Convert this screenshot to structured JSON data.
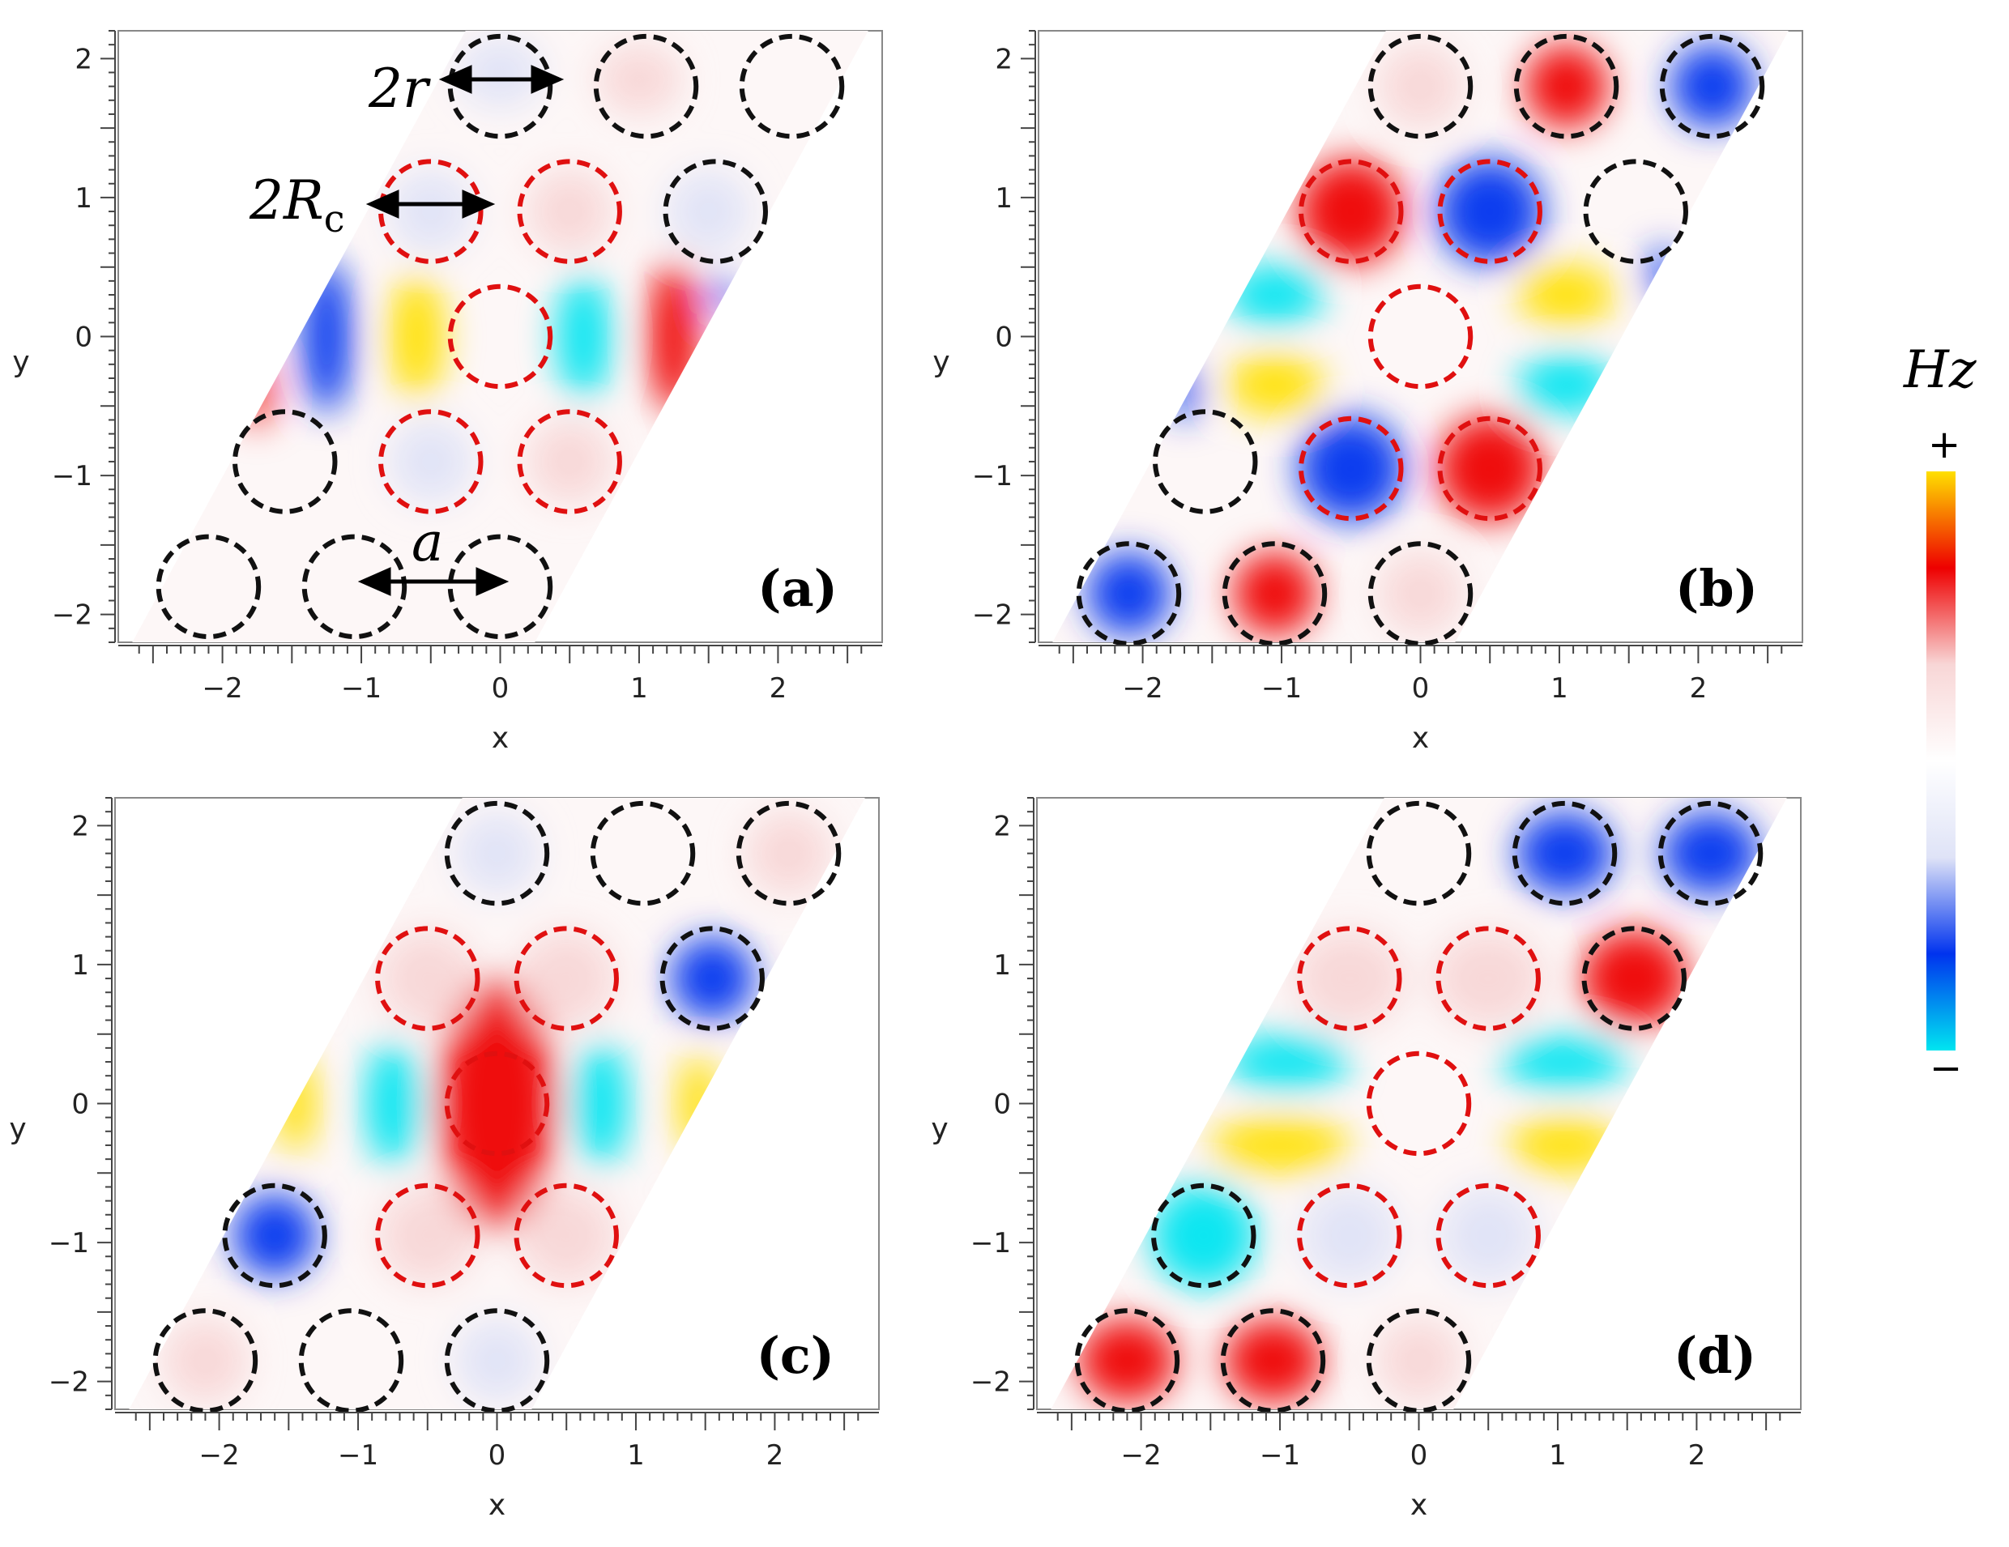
{
  "figure": {
    "colorbar": {
      "title": "Hz",
      "max_label": "+",
      "min_label": "−",
      "colors": [
        "#00e5f0",
        "#0033ee",
        "#dfe3f7",
        "#ffffff",
        "#f8d6d6",
        "#ee0000",
        "#ffe000"
      ]
    },
    "annotations": {
      "two_r": "2r",
      "two_Rc_main": "2R",
      "two_Rc_sub": "c",
      "a": "a"
    }
  },
  "chart_data": [
    {
      "type": "heatmap",
      "panel_label": "(a)",
      "xlabel": "x",
      "ylabel": "y",
      "xlim": [
        -2.75,
        2.75
      ],
      "ylim": [
        -2.2,
        2.2
      ],
      "xticks": [
        -2,
        -1,
        0,
        1,
        2
      ],
      "xtick_labels": [
        "−2",
        "−1",
        "0",
        "1",
        "2"
      ],
      "yticks": [
        -2,
        -1,
        0,
        1,
        2
      ],
      "ytick_labels": [
        "−2",
        "−1",
        "0",
        "1",
        "2"
      ],
      "blobs": [
        {
          "x": -1.25,
          "y": 0.0,
          "value": -0.8,
          "rx": 0.18,
          "ry": 0.55
        },
        {
          "x": -0.6,
          "y": 0.0,
          "value": 1.0,
          "rx": 0.2,
          "ry": 0.45
        },
        {
          "x": 0.6,
          "y": 0.0,
          "value": -1.0,
          "rx": 0.2,
          "ry": 0.45
        },
        {
          "x": 1.25,
          "y": 0.0,
          "value": 0.75,
          "rx": 0.18,
          "ry": 0.55
        },
        {
          "x": -1.75,
          "y": -0.4,
          "value": 0.35,
          "rx": 0.1,
          "ry": 0.25
        },
        {
          "x": 1.6,
          "y": 0.3,
          "value": -0.45,
          "rx": 0.08,
          "ry": 0.15
        },
        {
          "x": 0.0,
          "y": 1.9,
          "value": -0.2,
          "rx": 0.3,
          "ry": 0.25
        },
        {
          "x": 1.0,
          "y": 1.85,
          "value": 0.2,
          "rx": 0.3,
          "ry": 0.25
        },
        {
          "x": -0.5,
          "y": 0.9,
          "value": -0.1,
          "rx": 0.3,
          "ry": 0.3
        },
        {
          "x": 0.5,
          "y": 0.9,
          "value": 0.15,
          "rx": 0.3,
          "ry": 0.3
        },
        {
          "x": 1.5,
          "y": 0.9,
          "value": -0.25,
          "rx": 0.3,
          "ry": 0.3
        },
        {
          "x": -0.5,
          "y": -0.9,
          "value": -0.15,
          "rx": 0.3,
          "ry": 0.3
        },
        {
          "x": 0.5,
          "y": -0.9,
          "value": 0.1,
          "rx": 0.3,
          "ry": 0.3
        }
      ],
      "circles": [
        {
          "x": 0.0,
          "y": 1.8,
          "ring": "black"
        },
        {
          "x": 1.05,
          "y": 1.8,
          "ring": "black"
        },
        {
          "x": 2.1,
          "y": 1.8,
          "ring": "black"
        },
        {
          "x": -0.5,
          "y": 0.9,
          "ring": "red"
        },
        {
          "x": 0.5,
          "y": 0.9,
          "ring": "red"
        },
        {
          "x": 1.55,
          "y": 0.9,
          "ring": "black"
        },
        {
          "x": 0.0,
          "y": 0.0,
          "ring": "red"
        },
        {
          "x": -1.55,
          "y": -0.9,
          "ring": "black"
        },
        {
          "x": -0.5,
          "y": -0.9,
          "ring": "red"
        },
        {
          "x": 0.5,
          "y": -0.9,
          "ring": "red"
        },
        {
          "x": -2.1,
          "y": -1.8,
          "ring": "black"
        },
        {
          "x": -1.05,
          "y": -1.8,
          "ring": "black"
        },
        {
          "x": 0.0,
          "y": -1.8,
          "ring": "black"
        }
      ]
    },
    {
      "type": "heatmap",
      "panel_label": "(b)",
      "xlabel": "x",
      "ylabel": "y",
      "xlim": [
        -2.75,
        2.75
      ],
      "ylim": [
        -2.2,
        2.2
      ],
      "xticks": [
        -2,
        -1,
        0,
        1,
        2
      ],
      "xtick_labels": [
        "−2",
        "−1",
        "0",
        "1",
        "2"
      ],
      "yticks": [
        -2,
        -1,
        0,
        1,
        2
      ],
      "ytick_labels": [
        "−2",
        "−1",
        "0",
        "1",
        "2"
      ],
      "blobs": [
        {
          "x": -1.05,
          "y": 0.3,
          "value": -1.0,
          "rx": 0.35,
          "ry": 0.22
        },
        {
          "x": 1.05,
          "y": 0.3,
          "value": 1.0,
          "rx": 0.35,
          "ry": 0.22
        },
        {
          "x": -1.05,
          "y": -0.35,
          "value": 1.0,
          "rx": 0.35,
          "ry": 0.22
        },
        {
          "x": 1.05,
          "y": -0.35,
          "value": -1.0,
          "rx": 0.35,
          "ry": 0.22
        },
        {
          "x": -0.5,
          "y": 0.9,
          "value": 0.55,
          "rx": 0.38,
          "ry": 0.38
        },
        {
          "x": 0.5,
          "y": 0.9,
          "value": -0.65,
          "rx": 0.38,
          "ry": 0.38
        },
        {
          "x": -0.5,
          "y": -0.95,
          "value": -0.6,
          "rx": 0.38,
          "ry": 0.38
        },
        {
          "x": 0.5,
          "y": -0.95,
          "value": 0.55,
          "rx": 0.38,
          "ry": 0.38
        },
        {
          "x": 2.1,
          "y": 1.8,
          "value": -0.4,
          "rx": 0.3,
          "ry": 0.3
        },
        {
          "x": 1.05,
          "y": 1.8,
          "value": 0.3,
          "rx": 0.3,
          "ry": 0.3
        },
        {
          "x": 0.0,
          "y": 1.8,
          "value": 0.15,
          "rx": 0.3,
          "ry": 0.3
        },
        {
          "x": -2.1,
          "y": -1.85,
          "value": -0.4,
          "rx": 0.3,
          "ry": 0.3
        },
        {
          "x": -1.05,
          "y": -1.85,
          "value": 0.3,
          "rx": 0.3,
          "ry": 0.3
        },
        {
          "x": 0.0,
          "y": -1.85,
          "value": 0.15,
          "rx": 0.3,
          "ry": 0.3
        },
        {
          "x": -1.7,
          "y": -0.4,
          "value": -0.4,
          "rx": 0.1,
          "ry": 0.2
        },
        {
          "x": 1.75,
          "y": 0.45,
          "value": -0.4,
          "rx": 0.1,
          "ry": 0.2
        }
      ],
      "circles": [
        {
          "x": 0.0,
          "y": 1.8,
          "ring": "black"
        },
        {
          "x": 1.05,
          "y": 1.8,
          "ring": "black"
        },
        {
          "x": 2.1,
          "y": 1.8,
          "ring": "black"
        },
        {
          "x": -0.5,
          "y": 0.9,
          "ring": "red"
        },
        {
          "x": 0.5,
          "y": 0.9,
          "ring": "red"
        },
        {
          "x": 1.55,
          "y": 0.9,
          "ring": "black"
        },
        {
          "x": 0.0,
          "y": 0.0,
          "ring": "red"
        },
        {
          "x": -1.55,
          "y": -0.9,
          "ring": "black"
        },
        {
          "x": -0.5,
          "y": -0.95,
          "ring": "red"
        },
        {
          "x": 0.5,
          "y": -0.95,
          "ring": "red"
        },
        {
          "x": -2.1,
          "y": -1.85,
          "ring": "black"
        },
        {
          "x": -1.05,
          "y": -1.85,
          "ring": "black"
        },
        {
          "x": 0.0,
          "y": -1.85,
          "ring": "black"
        }
      ]
    },
    {
      "type": "heatmap",
      "panel_label": "(c)",
      "xlabel": "x",
      "ylabel": "y",
      "xlim": [
        -2.75,
        2.75
      ],
      "ylim": [
        -2.2,
        2.2
      ],
      "xticks": [
        -2,
        -1,
        0,
        1,
        2
      ],
      "xtick_labels": [
        "−2",
        "−1",
        "0",
        "1",
        "2"
      ],
      "yticks": [
        -2,
        -1,
        0,
        1,
        2
      ],
      "ytick_labels": [
        "−2",
        "−1",
        "0",
        "1",
        "2"
      ],
      "blobs": [
        {
          "x": -1.45,
          "y": 0.0,
          "value": 1.0,
          "rx": 0.15,
          "ry": 0.35
        },
        {
          "x": -0.75,
          "y": 0.0,
          "value": -0.85,
          "rx": 0.2,
          "ry": 0.45
        },
        {
          "x": 0.0,
          "y": 0.0,
          "value": 0.45,
          "rx": 0.42,
          "ry": 0.9
        },
        {
          "x": 0.75,
          "y": 0.0,
          "value": -0.85,
          "rx": 0.2,
          "ry": 0.45
        },
        {
          "x": 1.45,
          "y": 0.0,
          "value": 1.0,
          "rx": 0.15,
          "ry": 0.35
        },
        {
          "x": -0.5,
          "y": 0.9,
          "value": 0.2,
          "rx": 0.35,
          "ry": 0.35
        },
        {
          "x": 0.5,
          "y": 0.9,
          "value": 0.2,
          "rx": 0.35,
          "ry": 0.35
        },
        {
          "x": 1.55,
          "y": 0.9,
          "value": -0.3,
          "rx": 0.3,
          "ry": 0.3
        },
        {
          "x": -1.6,
          "y": -0.95,
          "value": -0.3,
          "rx": 0.3,
          "ry": 0.3
        },
        {
          "x": -0.5,
          "y": -0.95,
          "value": 0.2,
          "rx": 0.35,
          "ry": 0.35
        },
        {
          "x": 0.5,
          "y": -0.95,
          "value": 0.2,
          "rx": 0.35,
          "ry": 0.35
        },
        {
          "x": 0.0,
          "y": 1.8,
          "value": -0.2,
          "rx": 0.3,
          "ry": 0.3
        },
        {
          "x": 2.1,
          "y": 1.8,
          "value": 0.15,
          "rx": 0.3,
          "ry": 0.3
        },
        {
          "x": -2.1,
          "y": -1.85,
          "value": 0.15,
          "rx": 0.3,
          "ry": 0.3
        },
        {
          "x": 0.0,
          "y": -1.85,
          "value": -0.2,
          "rx": 0.3,
          "ry": 0.3
        }
      ],
      "circles": [
        {
          "x": 0.0,
          "y": 1.8,
          "ring": "black"
        },
        {
          "x": 1.05,
          "y": 1.8,
          "ring": "black"
        },
        {
          "x": 2.1,
          "y": 1.8,
          "ring": "black"
        },
        {
          "x": -0.5,
          "y": 0.9,
          "ring": "red"
        },
        {
          "x": 0.5,
          "y": 0.9,
          "ring": "red"
        },
        {
          "x": 1.55,
          "y": 0.9,
          "ring": "black"
        },
        {
          "x": 0.0,
          "y": 0.0,
          "ring": "red"
        },
        {
          "x": -1.6,
          "y": -0.95,
          "ring": "black"
        },
        {
          "x": -0.5,
          "y": -0.95,
          "ring": "red"
        },
        {
          "x": 0.5,
          "y": -0.95,
          "ring": "red"
        },
        {
          "x": -2.1,
          "y": -1.85,
          "ring": "black"
        },
        {
          "x": -1.05,
          "y": -1.85,
          "ring": "black"
        },
        {
          "x": 0.0,
          "y": -1.85,
          "ring": "black"
        }
      ]
    },
    {
      "type": "heatmap",
      "panel_label": "(d)",
      "xlabel": "x",
      "ylabel": "y",
      "xlim": [
        -2.75,
        2.75
      ],
      "ylim": [
        -2.2,
        2.2
      ],
      "xticks": [
        -2,
        -1,
        0,
        1,
        2
      ],
      "xtick_labels": [
        "−2",
        "−1",
        "0",
        "1",
        "2"
      ],
      "yticks": [
        -2,
        -1,
        0,
        1,
        2
      ],
      "ytick_labels": [
        "−2",
        "−1",
        "0",
        "1",
        "2"
      ],
      "blobs": [
        {
          "x": -0.95,
          "y": 0.3,
          "value": -1.0,
          "rx": 0.45,
          "ry": 0.2
        },
        {
          "x": 1.05,
          "y": 0.3,
          "value": -1.0,
          "rx": 0.45,
          "ry": 0.2
        },
        {
          "x": -1.0,
          "y": -0.3,
          "value": 1.0,
          "rx": 0.5,
          "ry": 0.2
        },
        {
          "x": 1.05,
          "y": -0.3,
          "value": 1.0,
          "rx": 0.4,
          "ry": 0.2
        },
        {
          "x": 1.55,
          "y": 0.9,
          "value": 0.8,
          "rx": 0.38,
          "ry": 0.35
        },
        {
          "x": -0.5,
          "y": 0.9,
          "value": 0.25,
          "rx": 0.4,
          "ry": 0.35
        },
        {
          "x": 0.5,
          "y": 0.9,
          "value": 0.25,
          "rx": 0.4,
          "ry": 0.35
        },
        {
          "x": -1.55,
          "y": -0.95,
          "value": -0.85,
          "rx": 0.38,
          "ry": 0.38
        },
        {
          "x": -0.5,
          "y": -0.95,
          "value": -0.2,
          "rx": 0.35,
          "ry": 0.35
        },
        {
          "x": 0.5,
          "y": -0.95,
          "value": -0.2,
          "rx": 0.35,
          "ry": 0.35
        },
        {
          "x": 1.05,
          "y": 1.8,
          "value": -0.45,
          "rx": 0.35,
          "ry": 0.3
        },
        {
          "x": 2.1,
          "y": 1.8,
          "value": -0.45,
          "rx": 0.35,
          "ry": 0.3
        },
        {
          "x": -2.1,
          "y": -1.85,
          "value": 0.45,
          "rx": 0.35,
          "ry": 0.3
        },
        {
          "x": -1.05,
          "y": -1.85,
          "value": 0.4,
          "rx": 0.35,
          "ry": 0.3
        },
        {
          "x": 0.0,
          "y": -1.85,
          "value": 0.15,
          "rx": 0.3,
          "ry": 0.3
        }
      ],
      "circles": [
        {
          "x": 0.0,
          "y": 1.8,
          "ring": "black"
        },
        {
          "x": 1.05,
          "y": 1.8,
          "ring": "black"
        },
        {
          "x": 2.1,
          "y": 1.8,
          "ring": "black"
        },
        {
          "x": -0.5,
          "y": 0.9,
          "ring": "red"
        },
        {
          "x": 0.5,
          "y": 0.9,
          "ring": "red"
        },
        {
          "x": 1.55,
          "y": 0.9,
          "ring": "black"
        },
        {
          "x": 0.0,
          "y": 0.0,
          "ring": "red"
        },
        {
          "x": -1.55,
          "y": -0.95,
          "ring": "black"
        },
        {
          "x": -0.5,
          "y": -0.95,
          "ring": "red"
        },
        {
          "x": 0.5,
          "y": -0.95,
          "ring": "red"
        },
        {
          "x": -2.1,
          "y": -1.85,
          "ring": "black"
        },
        {
          "x": -1.05,
          "y": -1.85,
          "ring": "black"
        },
        {
          "x": 0.0,
          "y": -1.85,
          "ring": "black"
        }
      ]
    }
  ]
}
